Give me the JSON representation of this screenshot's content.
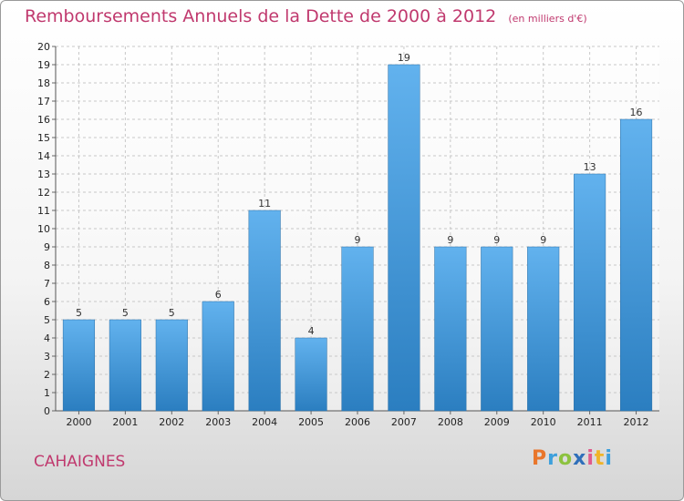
{
  "chart_data": {
    "type": "bar",
    "title": "Remboursements Annuels de la Dette de 2000 à 2012",
    "unit": "(en milliers d'€)",
    "categories": [
      "2000",
      "2001",
      "2002",
      "2003",
      "2004",
      "2005",
      "2006",
      "2007",
      "2008",
      "2009",
      "2010",
      "2011",
      "2012"
    ],
    "values": [
      5,
      5,
      5,
      6,
      11,
      4,
      9,
      19,
      9,
      9,
      9,
      13,
      16
    ],
    "ylim": [
      0,
      20
    ],
    "yticks": [
      0,
      1,
      2,
      3,
      4,
      5,
      6,
      7,
      8,
      9,
      10,
      11,
      12,
      13,
      14,
      15,
      16,
      17,
      18,
      19,
      20
    ],
    "grid": true,
    "colors": {
      "bar_light": "#62b2ee",
      "bar_dark": "#2b7ec0",
      "title": "#c0396e"
    }
  },
  "location": "CAHAIGNES",
  "logo": {
    "letters": [
      "P",
      "r",
      "o",
      "x",
      "i",
      "t",
      "i"
    ],
    "colors": [
      "#e9762b",
      "#3ea0dc",
      "#8cc23f",
      "#2f6fba",
      "#e05b8c",
      "#f0b429",
      "#3ea0dc"
    ]
  }
}
